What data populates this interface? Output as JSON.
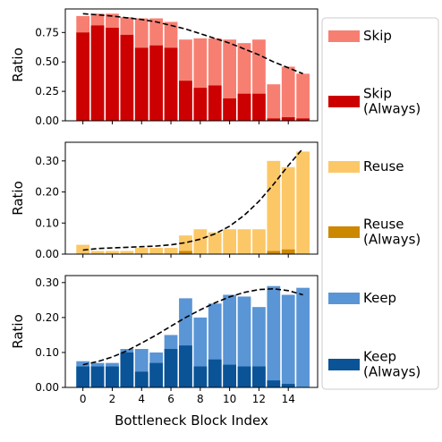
{
  "chart_data": {
    "type": "bar",
    "x": [
      0,
      1,
      2,
      3,
      4,
      5,
      6,
      7,
      8,
      9,
      10,
      11,
      12,
      13,
      14,
      15
    ],
    "xlabel": "Bottleneck Block Index",
    "xticks": [
      "0",
      "2",
      "4",
      "6",
      "8",
      "10",
      "12",
      "14"
    ],
    "panels": [
      {
        "ylabel": "Ratio",
        "ylim": [
          0,
          0.95
        ],
        "yticks": [
          "0.00",
          "0.25",
          "0.50",
          "0.75"
        ],
        "series": [
          {
            "name": "Skip",
            "color": "#f77f72",
            "values": [
              0.89,
              0.91,
              0.91,
              0.88,
              0.87,
              0.87,
              0.84,
              0.69,
              0.7,
              0.7,
              0.69,
              0.66,
              0.69,
              0.31,
              0.46,
              0.4
            ]
          },
          {
            "name": "Skip\n(Always)",
            "color": "#cc0000",
            "values": [
              0.75,
              0.81,
              0.79,
              0.73,
              0.62,
              0.64,
              0.62,
              0.34,
              0.28,
              0.3,
              0.19,
              0.23,
              0.23,
              0.02,
              0.03,
              0.02
            ]
          }
        ],
        "trend": [
          0.91,
          0.9,
          0.89,
          0.875,
          0.86,
          0.84,
          0.81,
          0.78,
          0.74,
          0.7,
          0.66,
          0.61,
          0.56,
          0.5,
          0.45,
          0.4
        ]
      },
      {
        "ylabel": "Ratio",
        "ylim": [
          0,
          0.36
        ],
        "yticks": [
          "0.00",
          "0.10",
          "0.20",
          "0.30"
        ],
        "series": [
          {
            "name": "Reuse",
            "color": "#fcc867",
            "values": [
              0.03,
              0.01,
              0.01,
              0.01,
              0.02,
              0.02,
              0.02,
              0.06,
              0.08,
              0.07,
              0.08,
              0.08,
              0.08,
              0.3,
              0.28,
              0.33
            ]
          },
          {
            "name": "Reuse\n(Always)",
            "color": "#cc8800",
            "values": [
              0.0,
              0.0,
              0.0,
              0.0,
              0.0,
              0.0,
              0.0,
              0.01,
              0.0,
              0.0,
              0.0,
              0.0,
              0.0,
              0.01,
              0.015,
              0.0
            ]
          }
        ],
        "trend": [
          0.013,
          0.018,
          0.02,
          0.022,
          0.024,
          0.026,
          0.03,
          0.037,
          0.048,
          0.065,
          0.09,
          0.125,
          0.17,
          0.225,
          0.285,
          0.34
        ]
      },
      {
        "ylabel": "Ratio",
        "ylim": [
          0,
          0.32
        ],
        "yticks": [
          "0.00",
          "0.10",
          "0.20",
          "0.30"
        ],
        "series": [
          {
            "name": "Keep",
            "color": "#5a95d5",
            "values": [
              0.075,
              0.07,
              0.07,
              0.11,
              0.11,
              0.1,
              0.15,
              0.255,
              0.2,
              0.24,
              0.265,
              0.26,
              0.23,
              0.29,
              0.265,
              0.285
            ]
          },
          {
            "name": "Keep\n(Always)",
            "color": "#0a5397",
            "values": [
              0.06,
              0.06,
              0.06,
              0.1,
              0.045,
              0.07,
              0.11,
              0.12,
              0.06,
              0.08,
              0.065,
              0.06,
              0.06,
              0.02,
              0.01,
              0.0
            ]
          }
        ],
        "trend": [
          0.065,
          0.074,
          0.087,
          0.105,
          0.127,
          0.15,
          0.175,
          0.2,
          0.222,
          0.242,
          0.259,
          0.272,
          0.28,
          0.282,
          0.277,
          0.265
        ]
      }
    ],
    "legend": {
      "position": "right",
      "entries": [
        {
          "label": "Skip",
          "color": "#f77f72"
        },
        {
          "label": "Skip\n(Always)",
          "color": "#cc0000"
        },
        {
          "label": "Reuse",
          "color": "#fcc867"
        },
        {
          "label": "Reuse\n(Always)",
          "color": "#cc8800"
        },
        {
          "label": "Keep",
          "color": "#5a95d5"
        },
        {
          "label": "Keep\n(Always)",
          "color": "#0a5397"
        }
      ]
    }
  }
}
